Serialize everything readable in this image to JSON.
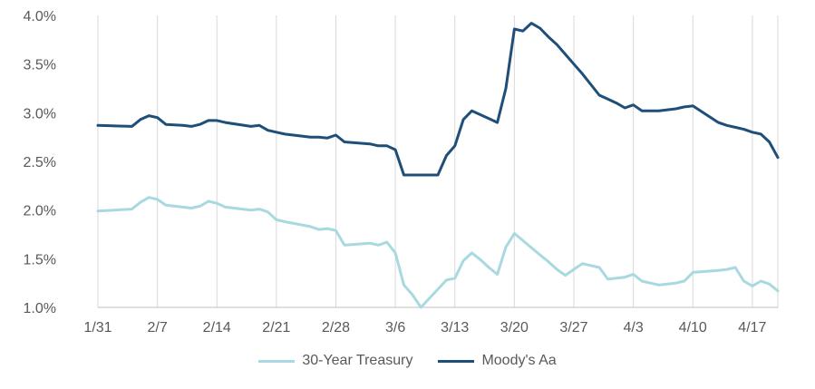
{
  "chart_data": {
    "type": "line",
    "title": "",
    "xlabel": "",
    "ylabel": "",
    "x_tick_labels": [
      "1/31",
      "2/7",
      "2/14",
      "2/21",
      "2/28",
      "3/6",
      "3/13",
      "3/20",
      "3/27",
      "4/3",
      "4/10",
      "4/17"
    ],
    "y_tick_labels": [
      "1.0%",
      "1.5%",
      "2.0%",
      "2.5%",
      "3.0%",
      "3.5%",
      "4.0%"
    ],
    "ylim": [
      1.0,
      4.0
    ],
    "x_range_days": [
      0,
      80
    ],
    "grid": {
      "vertical": true,
      "horizontal": false
    },
    "legend_position": "bottom",
    "series": [
      {
        "name": "30-Year Treasury",
        "color": "#a9d9e0",
        "x": [
          0,
          4,
          5,
          6,
          7,
          8,
          10,
          11,
          12,
          13,
          14,
          15,
          18,
          19,
          20,
          21,
          22,
          25,
          26,
          27,
          28,
          29,
          32,
          33,
          34,
          35,
          36,
          37,
          38,
          41,
          42,
          43,
          44,
          45,
          46,
          47,
          48,
          49,
          52,
          53,
          54,
          55,
          56,
          57,
          59,
          60,
          61,
          62,
          63,
          64,
          66,
          67,
          68,
          69,
          70,
          73,
          74,
          75,
          76,
          77,
          78,
          79,
          80
        ],
        "values": [
          1.99,
          2.01,
          2.08,
          2.13,
          2.11,
          2.05,
          2.03,
          2.02,
          2.04,
          2.09,
          2.07,
          2.03,
          2.0,
          2.01,
          1.98,
          1.9,
          1.88,
          1.83,
          1.8,
          1.81,
          1.79,
          1.64,
          1.66,
          1.64,
          1.67,
          1.56,
          1.23,
          1.13,
          1.0,
          1.28,
          1.3,
          1.48,
          1.56,
          1.49,
          1.41,
          1.34,
          1.62,
          1.76,
          1.54,
          1.47,
          1.39,
          1.33,
          1.39,
          1.45,
          1.41,
          1.29,
          1.3,
          1.31,
          1.34,
          1.27,
          1.23,
          1.24,
          1.25,
          1.27,
          1.36,
          1.38,
          1.39,
          1.41,
          1.27,
          1.22,
          1.27,
          1.24,
          1.17
        ]
      },
      {
        "name": "Moody's Aa",
        "color": "#1f4e79",
        "x": [
          0,
          4,
          5,
          6,
          7,
          8,
          10,
          11,
          12,
          13,
          14,
          15,
          18,
          19,
          20,
          21,
          22,
          25,
          26,
          27,
          28,
          29,
          32,
          33,
          34,
          35,
          36,
          37,
          38,
          39,
          40,
          41,
          42,
          43,
          44,
          45,
          46,
          47,
          48,
          49,
          50,
          51,
          52,
          53,
          54,
          55,
          56,
          57,
          59,
          60,
          61,
          62,
          63,
          64,
          66,
          67,
          68,
          69,
          70,
          73,
          74,
          75,
          76,
          77,
          78,
          79,
          80
        ],
        "values": [
          2.87,
          2.86,
          2.93,
          2.97,
          2.95,
          2.88,
          2.87,
          2.86,
          2.88,
          2.92,
          2.92,
          2.9,
          2.86,
          2.87,
          2.82,
          2.8,
          2.78,
          2.75,
          2.75,
          2.74,
          2.77,
          2.7,
          2.68,
          2.66,
          2.66,
          2.62,
          2.36,
          2.36,
          2.36,
          2.36,
          2.36,
          2.56,
          2.66,
          2.93,
          3.02,
          2.98,
          2.94,
          2.9,
          3.25,
          3.86,
          3.84,
          3.92,
          3.87,
          3.78,
          3.7,
          3.6,
          3.5,
          3.4,
          3.18,
          3.14,
          3.1,
          3.05,
          3.08,
          3.02,
          3.02,
          3.03,
          3.04,
          3.06,
          3.07,
          2.9,
          2.87,
          2.85,
          2.83,
          2.8,
          2.78,
          2.7,
          2.54
        ]
      }
    ]
  }
}
